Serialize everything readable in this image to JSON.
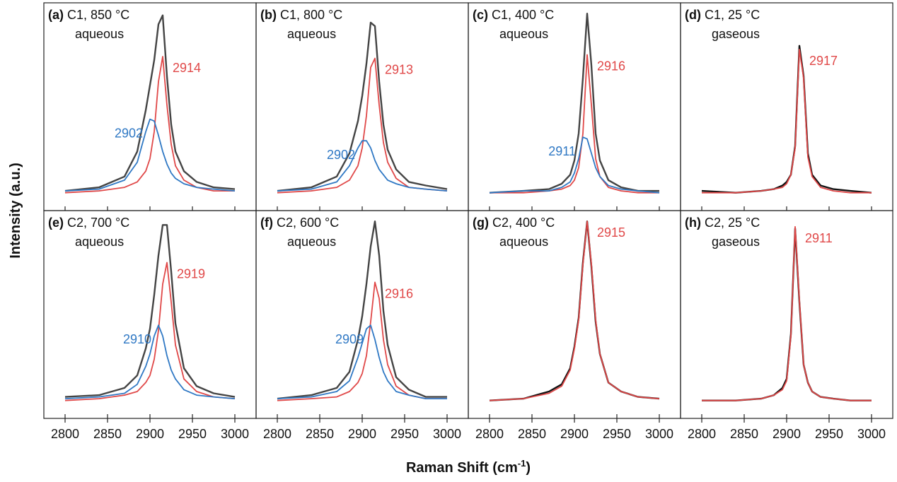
{
  "figure": {
    "x_label_parts": [
      "Raman Shift (cm",
      "-1",
      ")"
    ],
    "y_label": "Intensity (a.u.)"
  },
  "chart_data": [
    {
      "type": "line",
      "label": "(a)",
      "title": "C1, 850 °C",
      "subtitle": "aqueous",
      "xlim": [
        2775,
        3025
      ],
      "ylim": [
        -0.1,
        1.06
      ],
      "xticks": [
        2800,
        2850,
        2900,
        2950,
        3000
      ],
      "x": [
        2800,
        2840,
        2870,
        2885,
        2895,
        2900,
        2905,
        2910,
        2915,
        2920,
        2925,
        2930,
        2940,
        2955,
        2975,
        3000
      ],
      "series": [
        {
          "color": "#444444",
          "values": [
            0.01,
            0.03,
            0.09,
            0.23,
            0.46,
            0.6,
            0.74,
            0.94,
            0.99,
            0.65,
            0.38,
            0.23,
            0.12,
            0.06,
            0.03,
            0.02
          ]
        },
        {
          "color": "#e04848",
          "peak_label": "2914",
          "values": [
            0,
            0.01,
            0.03,
            0.06,
            0.12,
            0.19,
            0.34,
            0.62,
            0.76,
            0.49,
            0.27,
            0.15,
            0.07,
            0.03,
            0.01,
            0.01
          ]
        },
        {
          "color": "#2f78c4",
          "peak_label": "2902",
          "values": [
            0.01,
            0.02,
            0.07,
            0.17,
            0.34,
            0.41,
            0.4,
            0.32,
            0.23,
            0.16,
            0.11,
            0.08,
            0.05,
            0.03,
            0.02,
            0.01
          ]
        }
      ]
    },
    {
      "type": "line",
      "label": "(b)",
      "title": "C1, 800 °C",
      "subtitle": "aqueous",
      "xlim": [
        2775,
        3025
      ],
      "ylim": [
        -0.1,
        1.06
      ],
      "xticks": [
        2800,
        2850,
        2900,
        2950,
        3000
      ],
      "x": [
        2800,
        2840,
        2870,
        2885,
        2895,
        2900,
        2905,
        2910,
        2915,
        2920,
        2925,
        2930,
        2940,
        2955,
        2975,
        3000
      ],
      "series": [
        {
          "color": "#444444",
          "values": [
            0.01,
            0.03,
            0.09,
            0.22,
            0.4,
            0.54,
            0.72,
            0.95,
            0.93,
            0.62,
            0.38,
            0.24,
            0.13,
            0.06,
            0.04,
            0.02
          ]
        },
        {
          "color": "#e04848",
          "peak_label": "2913",
          "values": [
            0,
            0.01,
            0.03,
            0.07,
            0.15,
            0.25,
            0.43,
            0.7,
            0.75,
            0.49,
            0.28,
            0.17,
            0.08,
            0.03,
            0.02,
            0.01
          ]
        },
        {
          "color": "#2f78c4",
          "peak_label": "2902",
          "values": [
            0.01,
            0.02,
            0.06,
            0.15,
            0.25,
            0.29,
            0.29,
            0.25,
            0.18,
            0.13,
            0.1,
            0.07,
            0.05,
            0.03,
            0.02,
            0.01
          ]
        }
      ]
    },
    {
      "type": "line",
      "label": "(c)",
      "title": "C1, 400 °C",
      "subtitle": "aqueous",
      "xlim": [
        2775,
        3025
      ],
      "ylim": [
        -0.1,
        1.06
      ],
      "xticks": [
        2800,
        2850,
        2900,
        2950,
        3000
      ],
      "x": [
        2800,
        2840,
        2870,
        2885,
        2895,
        2900,
        2905,
        2910,
        2915,
        2920,
        2925,
        2930,
        2940,
        2955,
        2975,
        3000
      ],
      "series": [
        {
          "color": "#444444",
          "values": [
            0,
            0.01,
            0.02,
            0.05,
            0.1,
            0.18,
            0.33,
            0.64,
            1.0,
            0.71,
            0.33,
            0.18,
            0.07,
            0.03,
            0.01,
            0.01
          ]
        },
        {
          "color": "#e04848",
          "peak_label": "2916",
          "values": [
            0,
            0,
            0.01,
            0.02,
            0.04,
            0.07,
            0.14,
            0.33,
            0.77,
            0.49,
            0.19,
            0.09,
            0.03,
            0.01,
            0,
            0
          ]
        },
        {
          "color": "#2f78c4",
          "peak_label": "2911",
          "values": [
            0,
            0.01,
            0.01,
            0.03,
            0.06,
            0.11,
            0.19,
            0.31,
            0.3,
            0.22,
            0.14,
            0.09,
            0.04,
            0.02,
            0.01,
            0
          ]
        }
      ]
    },
    {
      "type": "line",
      "label": "(d)",
      "title": "C1, 25 °C",
      "subtitle": "gaseous",
      "xlim": [
        2775,
        3025
      ],
      "ylim": [
        -0.1,
        1.06
      ],
      "xticks": [
        2800,
        2850,
        2900,
        2950,
        3000
      ],
      "x": [
        2800,
        2840,
        2870,
        2885,
        2895,
        2900,
        2905,
        2910,
        2915,
        2920,
        2925,
        2930,
        2940,
        2955,
        2975,
        3000
      ],
      "series": [
        {
          "color": "#111111",
          "values": [
            0.01,
            0,
            0.01,
            0.02,
            0.04,
            0.06,
            0.1,
            0.26,
            0.82,
            0.65,
            0.22,
            0.1,
            0.04,
            0.02,
            0.01,
            0
          ]
        },
        {
          "color": "#e04848",
          "peak_label": "2917",
          "values": [
            0,
            0,
            0.01,
            0.02,
            0.03,
            0.05,
            0.1,
            0.25,
            0.8,
            0.64,
            0.2,
            0.09,
            0.03,
            0.01,
            0,
            0
          ]
        }
      ]
    },
    {
      "type": "line",
      "label": "(e)",
      "title": "C2, 700 °C",
      "subtitle": "aqueous",
      "xlim": [
        2775,
        3025
      ],
      "ylim": [
        -0.1,
        1.06
      ],
      "xticks": [
        2800,
        2850,
        2900,
        2950,
        3000
      ],
      "x": [
        2800,
        2840,
        2870,
        2885,
        2895,
        2900,
        2905,
        2910,
        2915,
        2920,
        2925,
        2930,
        2940,
        2955,
        2975,
        3000
      ],
      "series": [
        {
          "color": "#444444",
          "values": [
            0.02,
            0.03,
            0.07,
            0.14,
            0.29,
            0.4,
            0.59,
            0.81,
            0.98,
            0.98,
            0.72,
            0.43,
            0.18,
            0.08,
            0.04,
            0.02
          ]
        },
        {
          "color": "#e04848",
          "peak_label": "2919",
          "values": [
            0,
            0.01,
            0.03,
            0.05,
            0.1,
            0.14,
            0.23,
            0.39,
            0.65,
            0.77,
            0.55,
            0.31,
            0.12,
            0.05,
            0.02,
            0.01
          ]
        },
        {
          "color": "#2f78c4",
          "peak_label": "2910",
          "values": [
            0.01,
            0.02,
            0.04,
            0.09,
            0.19,
            0.26,
            0.36,
            0.42,
            0.36,
            0.25,
            0.17,
            0.12,
            0.06,
            0.03,
            0.02,
            0.01
          ]
        }
      ]
    },
    {
      "type": "line",
      "label": "(f)",
      "title": "C2, 600 °C",
      "subtitle": "aqueous",
      "xlim": [
        2775,
        3025
      ],
      "ylim": [
        -0.1,
        1.06
      ],
      "xticks": [
        2800,
        2850,
        2900,
        2950,
        3000
      ],
      "x": [
        2800,
        2840,
        2870,
        2885,
        2895,
        2900,
        2905,
        2910,
        2915,
        2920,
        2925,
        2930,
        2940,
        2955,
        2975,
        3000
      ],
      "series": [
        {
          "color": "#444444",
          "values": [
            0.01,
            0.03,
            0.07,
            0.16,
            0.34,
            0.47,
            0.65,
            0.86,
            1.0,
            0.81,
            0.5,
            0.31,
            0.13,
            0.06,
            0.02,
            0.02
          ]
        },
        {
          "color": "#e04848",
          "peak_label": "2916",
          "values": [
            0,
            0.01,
            0.02,
            0.05,
            0.1,
            0.15,
            0.25,
            0.44,
            0.66,
            0.57,
            0.34,
            0.2,
            0.08,
            0.03,
            0.01,
            0.01
          ]
        },
        {
          "color": "#2f78c4",
          "peak_label": "2909",
          "values": [
            0.01,
            0.02,
            0.05,
            0.11,
            0.24,
            0.32,
            0.4,
            0.42,
            0.34,
            0.24,
            0.16,
            0.11,
            0.05,
            0.03,
            0.01,
            0.01
          ]
        }
      ]
    },
    {
      "type": "line",
      "label": "(g)",
      "title": "C2, 400 °C",
      "subtitle": "aqueous",
      "xlim": [
        2775,
        3025
      ],
      "ylim": [
        -0.1,
        1.06
      ],
      "xticks": [
        2800,
        2850,
        2900,
        2950,
        3000
      ],
      "x": [
        2800,
        2840,
        2870,
        2885,
        2895,
        2900,
        2905,
        2910,
        2915,
        2920,
        2925,
        2930,
        2940,
        2955,
        2975,
        3000
      ],
      "series": [
        {
          "color": "#111111",
          "values": [
            0,
            0.01,
            0.05,
            0.09,
            0.18,
            0.3,
            0.46,
            0.77,
            1.0,
            0.75,
            0.44,
            0.26,
            0.1,
            0.05,
            0.02,
            0.01
          ]
        },
        {
          "color": "#e04848",
          "peak_label": "2915",
          "values": [
            0,
            0.01,
            0.04,
            0.08,
            0.17,
            0.29,
            0.45,
            0.76,
            1.0,
            0.76,
            0.45,
            0.26,
            0.1,
            0.05,
            0.02,
            0.01
          ]
        }
      ]
    },
    {
      "type": "line",
      "label": "(h)",
      "title": "C2, 25 °C",
      "subtitle": "gaseous",
      "xlim": [
        2775,
        3025
      ],
      "ylim": [
        -0.1,
        1.06
      ],
      "xticks": [
        2800,
        2850,
        2900,
        2950,
        3000
      ],
      "x": [
        2800,
        2840,
        2870,
        2885,
        2895,
        2900,
        2905,
        2910,
        2915,
        2920,
        2925,
        2930,
        2940,
        2955,
        2975,
        3000
      ],
      "series": [
        {
          "color": "#111111",
          "values": [
            0,
            0,
            0.01,
            0.03,
            0.07,
            0.12,
            0.37,
            0.96,
            0.55,
            0.2,
            0.1,
            0.05,
            0.02,
            0.01,
            0,
            0
          ]
        },
        {
          "color": "#e04848",
          "peak_label": "2911",
          "values": [
            0,
            0,
            0.01,
            0.03,
            0.06,
            0.11,
            0.36,
            0.97,
            0.56,
            0.2,
            0.1,
            0.05,
            0.02,
            0.01,
            0,
            0
          ]
        }
      ]
    }
  ]
}
